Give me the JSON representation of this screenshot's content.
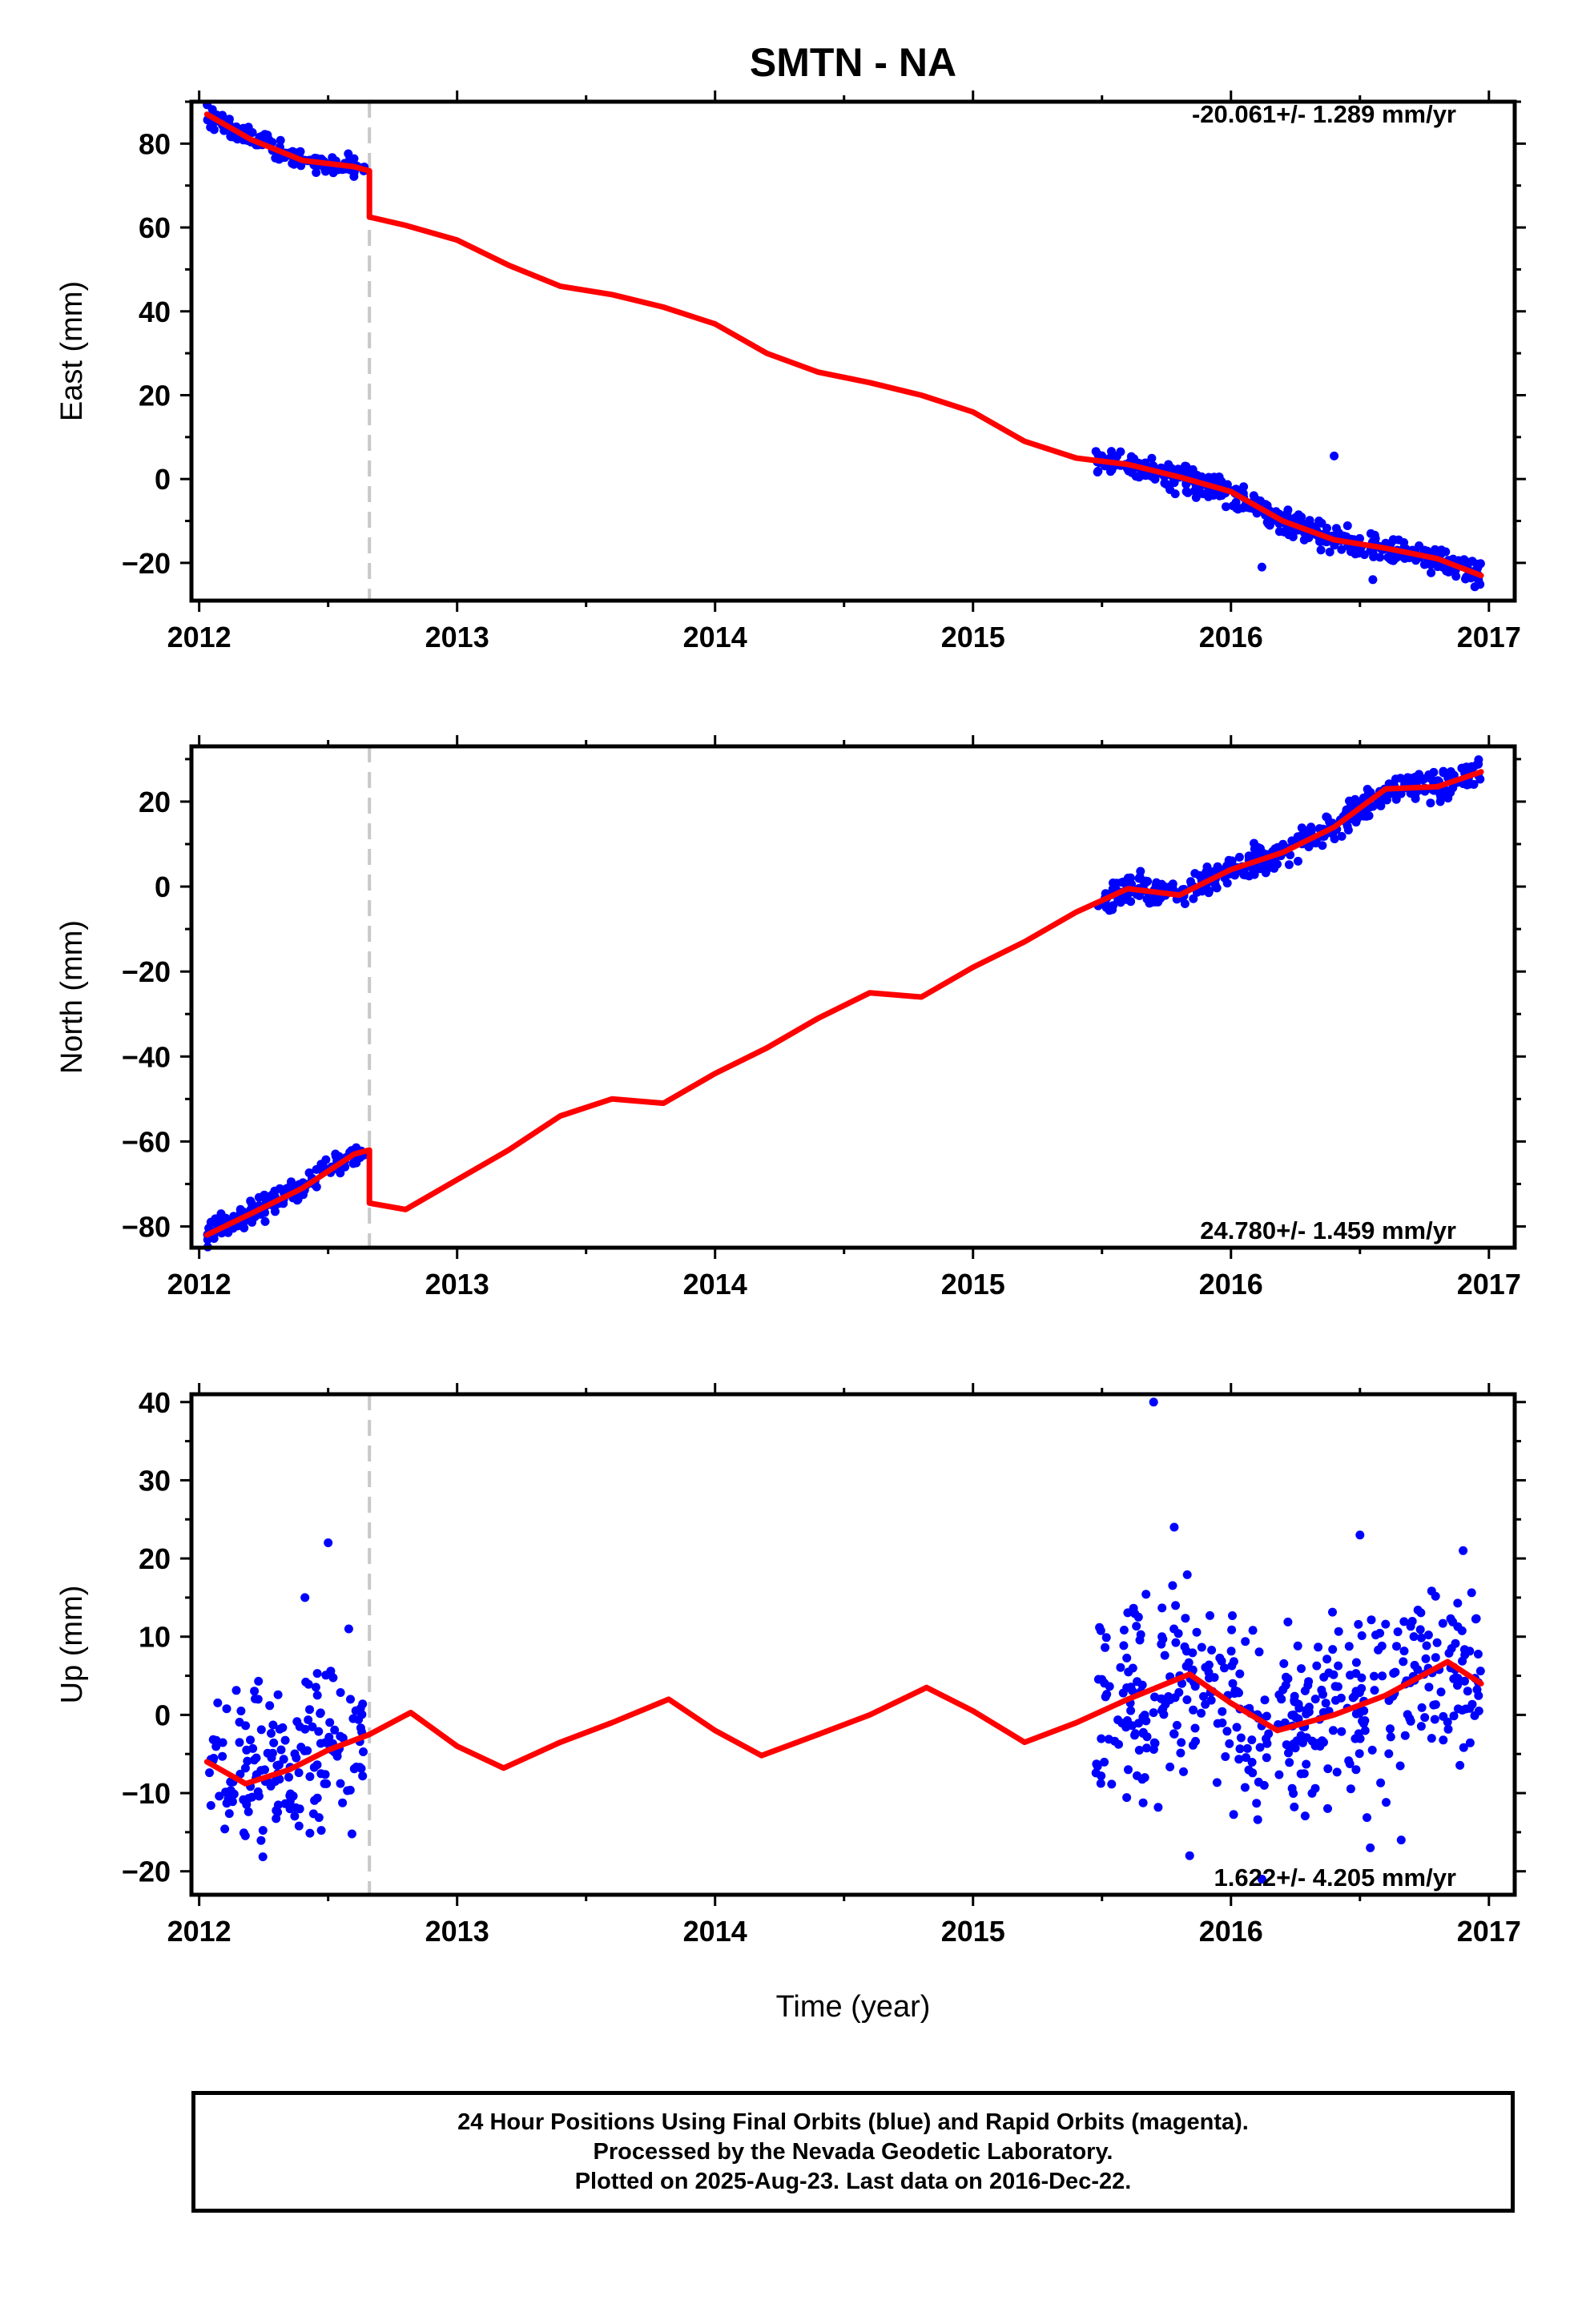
{
  "chart_data": {
    "type": "scatter",
    "title": "SMTN - NA",
    "xlabel": "Time (year)",
    "xlim": [
      2011.97,
      2017.1
    ],
    "xticks": [
      2012,
      2013,
      2014,
      2015,
      2016,
      2017
    ],
    "offset_epoch": 2012.66,
    "colors": {
      "observations": "#0000ff",
      "model": "#ff0000",
      "offset_line": "#c8c8c8"
    },
    "panels": [
      {
        "ylabel": "East (mm)",
        "ylim": [
          -29,
          90
        ],
        "yticks": [
          -20,
          0,
          20,
          40,
          60,
          80
        ],
        "rate": "-20.061+/- 1.289 mm/yr",
        "model": [
          [
            2012.03,
            87
          ],
          [
            2012.2,
            81
          ],
          [
            2012.4,
            76
          ],
          [
            2012.6,
            74.5
          ],
          [
            2012.66,
            73.5
          ],
          [
            2012.66,
            62.5
          ],
          [
            2012.8,
            60.5
          ],
          [
            2013.0,
            57
          ],
          [
            2013.2,
            51
          ],
          [
            2013.4,
            46
          ],
          [
            2013.6,
            44
          ],
          [
            2013.8,
            41
          ],
          [
            2014.0,
            37
          ],
          [
            2014.2,
            30
          ],
          [
            2014.4,
            25.5
          ],
          [
            2014.6,
            23
          ],
          [
            2014.8,
            20
          ],
          [
            2015.0,
            16
          ],
          [
            2015.2,
            9
          ],
          [
            2015.4,
            5
          ],
          [
            2015.6,
            3.5
          ],
          [
            2015.8,
            0.5
          ],
          [
            2016.0,
            -3
          ],
          [
            2016.2,
            -10
          ],
          [
            2016.4,
            -14.5
          ],
          [
            2016.6,
            -16.5
          ],
          [
            2016.8,
            -19
          ],
          [
            2016.97,
            -23
          ]
        ],
        "segments": [
          {
            "x0": 2012.03,
            "x1": 2012.64,
            "n": 150,
            "amp": 1.3,
            "outliers": []
          },
          {
            "x0": 2015.47,
            "x1": 2016.97,
            "n": 420,
            "amp": 1.6,
            "outliers": [
              [
                2016.4,
                5.5
              ],
              [
                2016.55,
                -24
              ],
              [
                2016.12,
                -21
              ]
            ]
          }
        ]
      },
      {
        "ylabel": "North (mm)",
        "ylim": [
          -85,
          33
        ],
        "yticks": [
          -80,
          -60,
          -40,
          -20,
          0,
          20
        ],
        "rate": "24.780+/- 1.459 mm/yr",
        "model": [
          [
            2012.03,
            -82
          ],
          [
            2012.2,
            -77
          ],
          [
            2012.4,
            -71
          ],
          [
            2012.6,
            -63
          ],
          [
            2012.66,
            -62
          ],
          [
            2012.66,
            -74.5
          ],
          [
            2012.8,
            -76
          ],
          [
            2013.0,
            -69
          ],
          [
            2013.2,
            -62
          ],
          [
            2013.4,
            -54
          ],
          [
            2013.6,
            -50
          ],
          [
            2013.8,
            -51
          ],
          [
            2014.0,
            -44
          ],
          [
            2014.2,
            -38
          ],
          [
            2014.4,
            -31
          ],
          [
            2014.6,
            -25
          ],
          [
            2014.8,
            -26
          ],
          [
            2015.0,
            -19
          ],
          [
            2015.2,
            -13
          ],
          [
            2015.4,
            -6
          ],
          [
            2015.6,
            -0.5
          ],
          [
            2015.8,
            -2
          ],
          [
            2016.0,
            4
          ],
          [
            2016.2,
            8
          ],
          [
            2016.4,
            14
          ],
          [
            2016.6,
            23
          ],
          [
            2016.8,
            23.5
          ],
          [
            2016.97,
            27
          ]
        ],
        "segments": [
          {
            "x0": 2012.03,
            "x1": 2012.64,
            "n": 150,
            "amp": 1.6,
            "outliers": []
          },
          {
            "x0": 2015.47,
            "x1": 2016.97,
            "n": 420,
            "amp": 1.7,
            "outliers": []
          }
        ]
      },
      {
        "ylabel": "Up (mm)",
        "ylim": [
          -23,
          41
        ],
        "yticks": [
          -20,
          -10,
          0,
          10,
          20,
          30,
          40
        ],
        "rate": "1.622+/- 4.205 mm/yr",
        "model": [
          [
            2012.03,
            -6
          ],
          [
            2012.18,
            -8.8
          ],
          [
            2012.35,
            -7
          ],
          [
            2012.5,
            -4.5
          ],
          [
            2012.66,
            -2.5
          ],
          [
            2012.82,
            0.3
          ],
          [
            2013.0,
            -4
          ],
          [
            2013.18,
            -6.8
          ],
          [
            2013.4,
            -3.5
          ],
          [
            2013.6,
            -1
          ],
          [
            2013.82,
            2
          ],
          [
            2014.0,
            -2
          ],
          [
            2014.18,
            -5.2
          ],
          [
            2014.4,
            -2.5
          ],
          [
            2014.6,
            0
          ],
          [
            2014.82,
            3.5
          ],
          [
            2015.0,
            0.5
          ],
          [
            2015.2,
            -3.5
          ],
          [
            2015.4,
            -1
          ],
          [
            2015.6,
            2
          ],
          [
            2015.84,
            5.2
          ],
          [
            2016.0,
            1.5
          ],
          [
            2016.18,
            -2
          ],
          [
            2016.4,
            0
          ],
          [
            2016.6,
            2.5
          ],
          [
            2016.84,
            6.8
          ],
          [
            2016.97,
            4
          ]
        ],
        "segments": [
          {
            "x0": 2012.03,
            "x1": 2012.64,
            "n": 170,
            "amp": 5.0,
            "outliers": [
              [
                2012.5,
                22
              ],
              [
                2012.41,
                15
              ],
              [
                2012.58,
                11
              ],
              [
                2012.23,
                4.3
              ]
            ]
          },
          {
            "x0": 2015.47,
            "x1": 2016.97,
            "n": 420,
            "amp": 5.8,
            "outliers": [
              [
                2015.7,
                40
              ],
              [
                2015.78,
                24
              ],
              [
                2016.5,
                23
              ],
              [
                2016.9,
                21
              ],
              [
                2015.84,
                -18
              ],
              [
                2016.12,
                -21
              ],
              [
                2016.54,
                -17
              ],
              [
                2016.66,
                -16
              ]
            ]
          }
        ]
      }
    ]
  },
  "caption": {
    "line1": "24 Hour Positions Using Final Orbits (blue) and Rapid Orbits (magenta).",
    "line2": "Processed by the Nevada Geodetic Laboratory.",
    "line3": "Plotted on 2025-Aug-23. Last data on 2016-Dec-22."
  }
}
